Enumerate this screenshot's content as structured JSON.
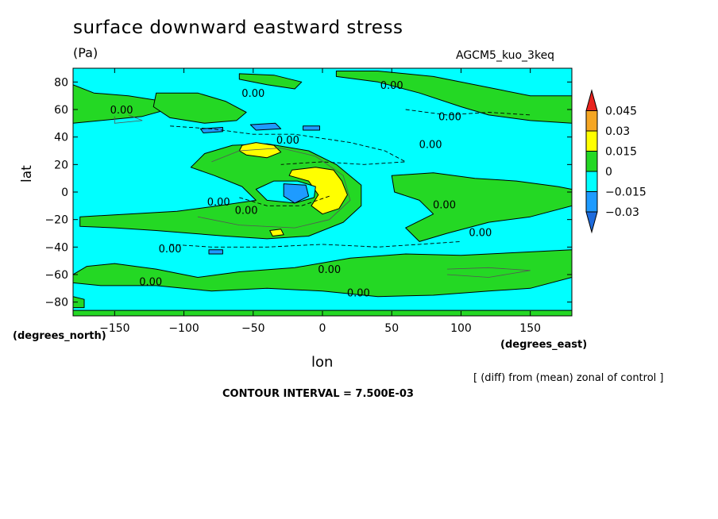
{
  "chart_data": {
    "type": "heatmap",
    "title": "surface downward eastward stress",
    "units": "(Pa)",
    "run_label": "AGCM5_kuo_3keq",
    "xlabel": "lon",
    "ylabel": "lat",
    "x_units": "(degrees_east)",
    "y_units": "(degrees_north)",
    "xlim": [
      -180,
      180
    ],
    "ylim": [
      -90,
      90
    ],
    "x_ticks": [
      -150,
      -100,
      -50,
      0,
      50,
      100,
      150
    ],
    "y_ticks": [
      -80,
      -60,
      -40,
      -20,
      0,
      20,
      40,
      60,
      80
    ],
    "x_tick_labels": [
      "−150",
      "−100",
      "−50",
      "0",
      "50",
      "100",
      "150"
    ],
    "y_tick_labels": [
      "−80",
      "−60",
      "−40",
      "−20",
      "0",
      "20",
      "40",
      "60",
      "80"
    ],
    "note": "[ (diff) from (mean) zonal of control ]",
    "contour_interval_text": "CONTOUR INTERVAL = 7.500E-03",
    "contour_label": "0.00",
    "colorbar": {
      "labels": [
        "0.045",
        "0.03",
        "0.015",
        "0",
        "−0.015",
        "−0.03"
      ],
      "colors": [
        "#e8231e",
        "#f5a623",
        "#ffff00",
        "#24d824",
        "#00ffff",
        "#1e9bff",
        "#1e6bdc"
      ]
    },
    "background_color": "#00ffff",
    "regions": [
      {
        "level": "0 to 0.015",
        "color": "#24d824",
        "pts": [
          [
            -180,
            -60
          ],
          [
            -170,
            -54
          ],
          [
            -150,
            -52
          ],
          [
            -120,
            -56
          ],
          [
            -90,
            -62
          ],
          [
            -60,
            -58
          ],
          [
            -20,
            -55
          ],
          [
            20,
            -48
          ],
          [
            60,
            -45
          ],
          [
            100,
            -46
          ],
          [
            140,
            -44
          ],
          [
            180,
            -42
          ],
          [
            180,
            -62
          ],
          [
            150,
            -70
          ],
          [
            120,
            -72
          ],
          [
            80,
            -75
          ],
          [
            40,
            -76
          ],
          [
            0,
            -72
          ],
          [
            -40,
            -70
          ],
          [
            -80,
            -72
          ],
          [
            -120,
            -68
          ],
          [
            -160,
            -68
          ],
          [
            -180,
            -66
          ]
        ]
      },
      {
        "level": "0 to 0.015",
        "color": "#24d824",
        "pts": [
          [
            -180,
            -86
          ],
          [
            180,
            -86
          ],
          [
            180,
            -90
          ],
          [
            -180,
            -90
          ]
        ]
      },
      {
        "level": "0 to 0.015",
        "color": "#24d824",
        "pts": [
          [
            -180,
            -76
          ],
          [
            -172,
            -78
          ],
          [
            -172,
            -84
          ],
          [
            -180,
            -84
          ]
        ]
      },
      {
        "level": "0 to 0.015",
        "color": "#24d824",
        "pts": [
          [
            -95,
            18
          ],
          [
            -85,
            28
          ],
          [
            -65,
            34
          ],
          [
            -40,
            35
          ],
          [
            -10,
            30
          ],
          [
            10,
            20
          ],
          [
            28,
            5
          ],
          [
            28,
            -10
          ],
          [
            15,
            -22
          ],
          [
            -10,
            -32
          ],
          [
            -40,
            -34
          ],
          [
            -70,
            -32
          ],
          [
            -95,
            -30
          ],
          [
            -120,
            -28
          ],
          [
            -150,
            -26
          ],
          [
            -175,
            -25
          ],
          [
            -175,
            -18
          ],
          [
            -140,
            -16
          ],
          [
            -105,
            -14
          ],
          [
            -75,
            -10
          ],
          [
            -48,
            -6
          ],
          [
            -58,
            4
          ],
          [
            -78,
            12
          ]
        ]
      },
      {
        "level": "0 to 0.015",
        "color": "#24d824",
        "pts": [
          [
            -180,
            78
          ],
          [
            -165,
            72
          ],
          [
            -140,
            70
          ],
          [
            -115,
            66
          ],
          [
            -112,
            60
          ],
          [
            -130,
            55
          ],
          [
            -160,
            52
          ],
          [
            -180,
            50
          ]
        ]
      },
      {
        "level": "0 to 0.015",
        "color": "#24d824",
        "pts": [
          [
            -120,
            72
          ],
          [
            -90,
            72
          ],
          [
            -70,
            66
          ],
          [
            -55,
            58
          ],
          [
            -62,
            52
          ],
          [
            -85,
            50
          ],
          [
            -110,
            54
          ],
          [
            -122,
            62
          ]
        ]
      },
      {
        "level": "0 to 0.015",
        "color": "#24d824",
        "pts": [
          [
            -60,
            82
          ],
          [
            -40,
            78
          ],
          [
            -20,
            75
          ],
          [
            -15,
            80
          ],
          [
            -35,
            85
          ],
          [
            -60,
            86
          ]
        ]
      },
      {
        "level": "0 to 0.015",
        "color": "#24d824",
        "pts": [
          [
            10,
            84
          ],
          [
            40,
            80
          ],
          [
            70,
            72
          ],
          [
            100,
            62
          ],
          [
            120,
            56
          ],
          [
            150,
            52
          ],
          [
            180,
            50
          ],
          [
            180,
            70
          ],
          [
            150,
            70
          ],
          [
            120,
            76
          ],
          [
            80,
            84
          ],
          [
            40,
            88
          ],
          [
            10,
            88
          ]
        ]
      },
      {
        "level": "0 to 0.015",
        "color": "#24d824",
        "pts": [
          [
            50,
            12
          ],
          [
            80,
            14
          ],
          [
            110,
            10
          ],
          [
            140,
            8
          ],
          [
            170,
            4
          ],
          [
            180,
            2
          ],
          [
            180,
            -10
          ],
          [
            150,
            -18
          ],
          [
            120,
            -22
          ],
          [
            90,
            -30
          ],
          [
            70,
            -36
          ],
          [
            60,
            -26
          ],
          [
            80,
            -16
          ],
          [
            70,
            -6
          ],
          [
            52,
            0
          ]
        ]
      },
      {
        "level": "0.015 to 0.03",
        "color": "#ffff00",
        "pts": [
          [
            -22,
            16
          ],
          [
            -5,
            18
          ],
          [
            8,
            16
          ],
          [
            14,
            8
          ],
          [
            18,
            -2
          ],
          [
            12,
            -12
          ],
          [
            0,
            -16
          ],
          [
            -8,
            -10
          ],
          [
            -3,
            -2
          ],
          [
            -10,
            8
          ],
          [
            -24,
            12
          ]
        ]
      },
      {
        "level": "0.015 to 0.03",
        "color": "#ffff00",
        "pts": [
          [
            -58,
            34
          ],
          [
            -48,
            36
          ],
          [
            -35,
            34
          ],
          [
            -30,
            29
          ],
          [
            -40,
            25
          ],
          [
            -55,
            27
          ],
          [
            -60,
            30
          ]
        ]
      },
      {
        "level": "0.015 to 0.03",
        "color": "#ffff00",
        "pts": [
          [
            -38,
            -28
          ],
          [
            -30,
            -27
          ],
          [
            -28,
            -31
          ],
          [
            -36,
            -32
          ]
        ]
      },
      {
        "level": "-0.015 to 0",
        "color": "#00ffff",
        "pts": [
          [
            -48,
            2
          ],
          [
            -35,
            8
          ],
          [
            -18,
            8
          ],
          [
            -5,
            4
          ],
          [
            -6,
            -4
          ],
          [
            -20,
            -8
          ],
          [
            -40,
            -6
          ]
        ]
      },
      {
        "level": "-0.03 to -0.015",
        "color": "#1e9bff",
        "pts": [
          [
            -28,
            6
          ],
          [
            -12,
            5
          ],
          [
            -10,
            -3
          ],
          [
            -20,
            -8
          ],
          [
            -28,
            -3
          ]
        ]
      },
      {
        "level": "-0.03 to -0.015",
        "color": "#1e9bff",
        "pts": [
          [
            -88,
            46
          ],
          [
            -72,
            47
          ],
          [
            -72,
            44
          ],
          [
            -86,
            43
          ]
        ]
      },
      {
        "level": "-0.03 to -0.015",
        "color": "#1e9bff",
        "pts": [
          [
            -52,
            49
          ],
          [
            -34,
            50
          ],
          [
            -30,
            46
          ],
          [
            -48,
            45
          ]
        ]
      },
      {
        "level": "-0.03 to -0.015",
        "color": "#1e9bff",
        "pts": [
          [
            -14,
            48
          ],
          [
            -2,
            48
          ],
          [
            -2,
            45
          ],
          [
            -14,
            45
          ]
        ]
      },
      {
        "level": "-0.03 to -0.015",
        "color": "#1e9bff",
        "pts": [
          [
            -82,
            -42
          ],
          [
            -72,
            -42
          ],
          [
            -72,
            -45
          ],
          [
            -82,
            -45
          ]
        ]
      }
    ],
    "contours": [
      {
        "kind": "dashed",
        "pts": [
          [
            -110,
            48
          ],
          [
            -80,
            46
          ],
          [
            -50,
            42
          ],
          [
            -20,
            42
          ],
          [
            20,
            36
          ],
          [
            45,
            30
          ],
          [
            60,
            22
          ],
          [
            30,
            20
          ],
          [
            0,
            22
          ],
          [
            -30,
            20
          ]
        ]
      },
      {
        "kind": "dashed",
        "pts": [
          [
            -110,
            -38
          ],
          [
            -80,
            -40
          ],
          [
            -40,
            -40
          ],
          [
            0,
            -38
          ],
          [
            40,
            -40
          ],
          [
            70,
            -38
          ],
          [
            100,
            -36
          ]
        ]
      },
      {
        "kind": "dashed",
        "pts": [
          [
            60,
            60
          ],
          [
            90,
            56
          ],
          [
            120,
            58
          ],
          [
            150,
            56
          ]
        ]
      },
      {
        "kind": "dashed",
        "pts": [
          [
            -60,
            -4
          ],
          [
            -40,
            -10
          ],
          [
            -15,
            -10
          ],
          [
            5,
            -3
          ]
        ]
      },
      {
        "kind": "thin",
        "pts": [
          [
            -80,
            22
          ],
          [
            -60,
            30
          ],
          [
            -30,
            32
          ],
          [
            -5,
            26
          ],
          [
            15,
            12
          ],
          [
            20,
            -6
          ],
          [
            5,
            -20
          ],
          [
            -20,
            -26
          ],
          [
            -60,
            -24
          ],
          [
            -90,
            -18
          ]
        ]
      },
      {
        "kind": "thin",
        "pts": [
          [
            -140,
            56
          ],
          [
            -130,
            52
          ],
          [
            -150,
            50
          ],
          [
            -150,
            55
          ]
        ]
      },
      {
        "kind": "thin",
        "pts": [
          [
            90,
            -56
          ],
          [
            120,
            -55
          ],
          [
            150,
            -57
          ],
          [
            120,
            -62
          ],
          [
            90,
            -60
          ]
        ]
      }
    ],
    "contour_labels": [
      {
        "lon": -145,
        "lat": 60
      },
      {
        "lon": -50,
        "lat": 72
      },
      {
        "lon": 50,
        "lat": 78
      },
      {
        "lon": 92,
        "lat": 55
      },
      {
        "lon": -25,
        "lat": 38
      },
      {
        "lon": 78,
        "lat": 35
      },
      {
        "lon": -75,
        "lat": -7
      },
      {
        "lon": -55,
        "lat": -13
      },
      {
        "lon": 88,
        "lat": -9
      },
      {
        "lon": 114,
        "lat": -29
      },
      {
        "lon": -110,
        "lat": -41
      },
      {
        "lon": 5,
        "lat": -56
      },
      {
        "lon": -124,
        "lat": -65
      },
      {
        "lon": 26,
        "lat": -73
      }
    ]
  }
}
